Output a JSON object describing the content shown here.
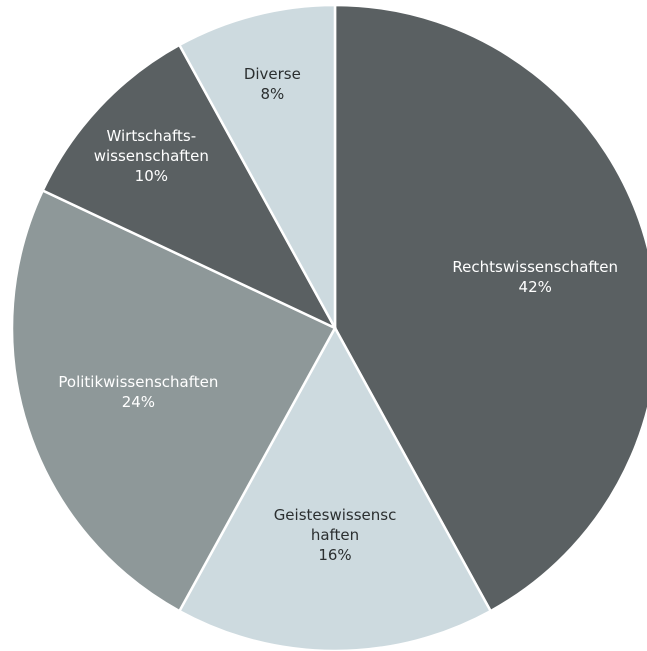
{
  "chart_data": {
    "type": "pie",
    "categories": [
      "Rechtswissenschaften",
      "Geisteswissenschaften",
      "Politikwissenschaften",
      "Wirtschafts-wissenschaften",
      "Diverse"
    ],
    "values": [
      42,
      16,
      24,
      10,
      8
    ],
    "value_labels": [
      "42%",
      "16%",
      "24%",
      "10%",
      "8%"
    ],
    "colors": [
      "#5a6062",
      "#cddadf",
      "#8e9899",
      "#5a6062",
      "#cddadf"
    ]
  }
}
